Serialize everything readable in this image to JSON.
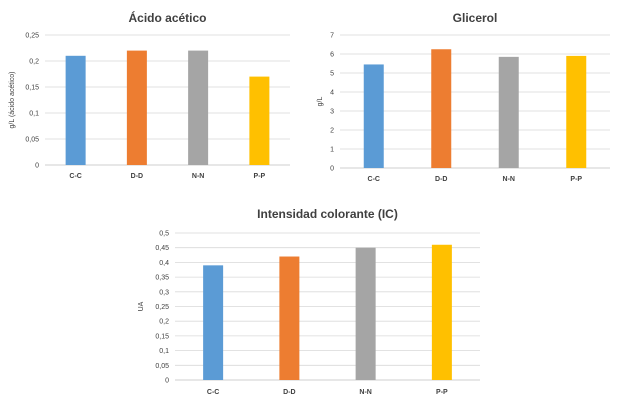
{
  "colors": [
    "#5b9bd5",
    "#ed7d31",
    "#a5a5a5",
    "#ffc000"
  ],
  "chart_data": [
    {
      "type": "bar",
      "title": "Ácido acético",
      "ylabel": "g/L (ácido acético)",
      "xlabel": "",
      "categories": [
        "C-C",
        "D-D",
        "N-N",
        "P-P"
      ],
      "values": [
        0.21,
        0.22,
        0.22,
        0.17
      ],
      "ylim": [
        0,
        0.25
      ],
      "yticks": [
        "0",
        "0,05",
        "0,1",
        "0,15",
        "0,2",
        "0,25"
      ],
      "grid": true
    },
    {
      "type": "bar",
      "title": "Glicerol",
      "ylabel": "g/L",
      "xlabel": "",
      "categories": [
        "C-C",
        "D-D",
        "N-N",
        "P-P"
      ],
      "values": [
        5.45,
        6.25,
        5.85,
        5.9
      ],
      "ylim": [
        0,
        7
      ],
      "yticks": [
        "0",
        "1",
        "2",
        "3",
        "4",
        "5",
        "6",
        "7"
      ],
      "grid": true
    },
    {
      "type": "bar",
      "title": "Intensidad colorante (IC)",
      "ylabel": "UA",
      "xlabel": "",
      "categories": [
        "C-C",
        "D-D",
        "N-N",
        "P-P"
      ],
      "values": [
        0.39,
        0.42,
        0.45,
        0.46
      ],
      "ylim": [
        0,
        0.5
      ],
      "yticks": [
        "0",
        "0,05",
        "0,1",
        "0,15",
        "0,2",
        "0,25",
        "0,3",
        "0,35",
        "0,4",
        "0,45",
        "0,5"
      ],
      "grid": true
    }
  ]
}
